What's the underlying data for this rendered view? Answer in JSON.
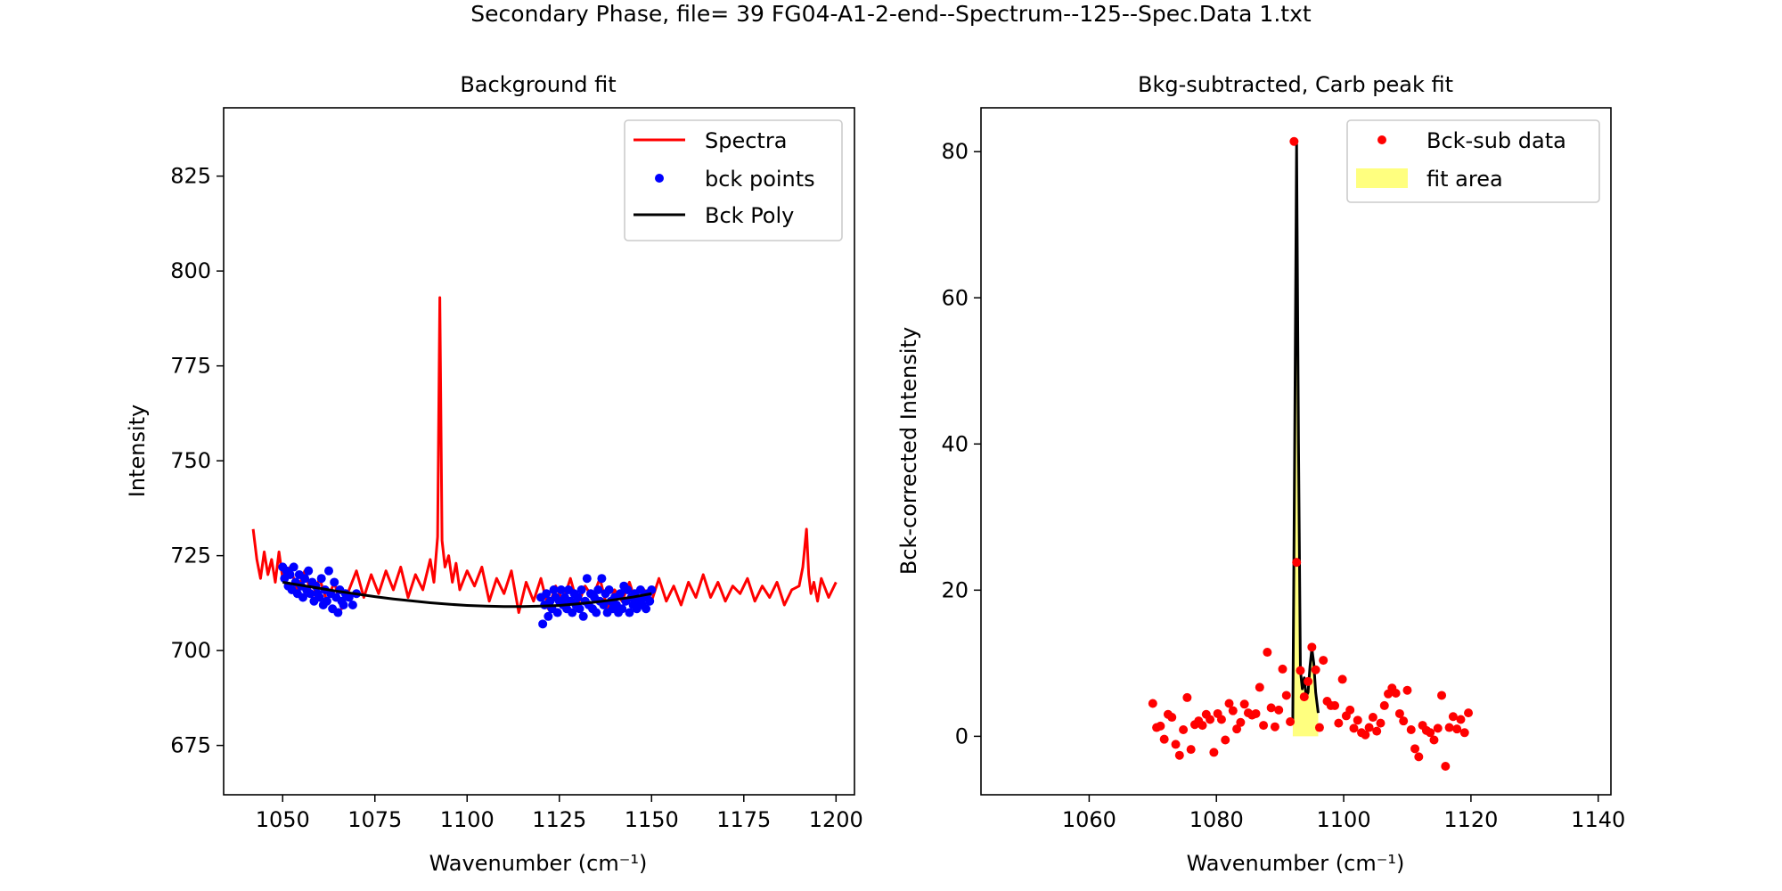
{
  "figure": {
    "title": "Secondary Phase, file= 39 FG04-A1-2-end--Spectrum--125--Spec.Data 1.txt"
  },
  "colors": {
    "spectra": "#ff0000",
    "bck_points": "#0000ff",
    "bck_poly": "#000000",
    "bck_sub_data": "#ff0000",
    "fit_area": "#ffff00",
    "fit_line": "#000000"
  },
  "chart_data": [
    {
      "type": "line",
      "title": "Background fit",
      "xlabel": "Wavenumber (cm⁻¹)",
      "ylabel": "Intensity",
      "xlim": [
        1034,
        1205
      ],
      "ylim": [
        662,
        843
      ],
      "xticks": [
        1050,
        1075,
        1100,
        1125,
        1150,
        1175,
        1200
      ],
      "yticks": [
        675,
        700,
        725,
        750,
        775,
        800,
        825
      ],
      "grid": false,
      "legend_position": "top-right",
      "legend": [
        "Spectra",
        "bck points",
        "Bck Poly"
      ],
      "series": [
        {
          "name": "Spectra",
          "kind": "line",
          "x": [
            1042,
            1043,
            1044,
            1045,
            1046,
            1047,
            1048,
            1049,
            1050,
            1052,
            1054,
            1056,
            1058,
            1060,
            1062,
            1064,
            1066,
            1068,
            1070,
            1072,
            1074,
            1076,
            1078,
            1080,
            1082,
            1084,
            1086,
            1088,
            1090,
            1091,
            1092,
            1092.6,
            1093.2,
            1094,
            1095,
            1096,
            1097,
            1098,
            1100,
            1102,
            1104,
            1106,
            1108,
            1110,
            1112,
            1114,
            1116,
            1118,
            1120,
            1122,
            1124,
            1126,
            1128,
            1130,
            1132,
            1134,
            1136,
            1138,
            1140,
            1142,
            1144,
            1146,
            1148,
            1150,
            1152,
            1154,
            1156,
            1158,
            1160,
            1162,
            1164,
            1166,
            1168,
            1170,
            1172,
            1174,
            1176,
            1178,
            1180,
            1182,
            1184,
            1186,
            1188,
            1190,
            1191,
            1192,
            1192.6,
            1193.2,
            1194,
            1195,
            1196,
            1198,
            1200
          ],
          "y": [
            732,
            724,
            719,
            726,
            720,
            724,
            718,
            726,
            719,
            722,
            716,
            721,
            714,
            719,
            713,
            718,
            711,
            716,
            721,
            714,
            720,
            715,
            721,
            716,
            722,
            714,
            720,
            716,
            724,
            718,
            730,
            793,
            729,
            722,
            725,
            718,
            723,
            716,
            721,
            717,
            722,
            713,
            719,
            715,
            721,
            710,
            718,
            713,
            719,
            711,
            717,
            713,
            719,
            712,
            717,
            714,
            719,
            711,
            716,
            713,
            718,
            712,
            716,
            713,
            719,
            713,
            717,
            712,
            718,
            714,
            720,
            714,
            718,
            713,
            717,
            715,
            719,
            713,
            717,
            714,
            718,
            712,
            716,
            717,
            722,
            732,
            720,
            715,
            718,
            713,
            719,
            714,
            718
          ]
        },
        {
          "name": "bck points",
          "kind": "scatter",
          "x": [
            1050,
            1050.5,
            1051,
            1051.5,
            1052,
            1052.5,
            1053,
            1053.5,
            1054,
            1054.5,
            1055,
            1055.5,
            1056,
            1056.5,
            1057,
            1057.5,
            1058,
            1058.5,
            1059,
            1059.5,
            1060,
            1060.5,
            1061,
            1061.5,
            1062,
            1062.5,
            1063,
            1063.5,
            1064,
            1064.5,
            1065,
            1065.5,
            1066,
            1066.5,
            1067,
            1068,
            1069,
            1070,
            1120,
            1120.5,
            1121,
            1121.5,
            1122,
            1122.5,
            1123,
            1123.5,
            1124,
            1124.5,
            1125,
            1125.5,
            1126,
            1126.5,
            1127,
            1127.5,
            1128,
            1128.5,
            1129,
            1129.5,
            1130,
            1130.5,
            1131,
            1131.5,
            1132,
            1132.5,
            1133,
            1133.5,
            1134,
            1134.5,
            1135,
            1135.5,
            1136,
            1136.5,
            1137,
            1137.5,
            1138,
            1138.5,
            1139,
            1139.5,
            1140,
            1140.5,
            1141,
            1141.5,
            1142,
            1142.5,
            1143,
            1143.5,
            1144,
            1144.5,
            1145,
            1145.5,
            1146,
            1146.5,
            1147,
            1147.5,
            1148,
            1148.5,
            1149,
            1149.5,
            1150
          ],
          "y": [
            722,
            719,
            721,
            717,
            720,
            716,
            722,
            718,
            715,
            720,
            717,
            714,
            719,
            716,
            721,
            715,
            718,
            713,
            717,
            715,
            714,
            719,
            712,
            716,
            713,
            721,
            715,
            711,
            718,
            714,
            710,
            716,
            713,
            712,
            715,
            714,
            712,
            715,
            714,
            707,
            712,
            715,
            709,
            713,
            711,
            716,
            714,
            710,
            713,
            716,
            712,
            714,
            711,
            716,
            713,
            710,
            715,
            712,
            714,
            711,
            716,
            709,
            713,
            719,
            712,
            715,
            711,
            714,
            710,
            716,
            713,
            719,
            712,
            715,
            710,
            716,
            713,
            711,
            714,
            712,
            710,
            715,
            711,
            717,
            713,
            716,
            710,
            714,
            712,
            715,
            711,
            713,
            716,
            712,
            714,
            711,
            715,
            713,
            716
          ]
        },
        {
          "name": "Bck Poly",
          "kind": "line",
          "x": [
            1050,
            1055,
            1060,
            1065,
            1070,
            1075,
            1080,
            1085,
            1090,
            1095,
            1100,
            1105,
            1110,
            1115,
            1120,
            1125,
            1130,
            1135,
            1140,
            1145,
            1150
          ],
          "y": [
            718,
            717.2,
            716.4,
            715.6,
            714.9,
            714.2,
            713.6,
            713.1,
            712.6,
            712.2,
            711.9,
            711.7,
            711.6,
            711.6,
            711.7,
            711.9,
            712.3,
            712.8,
            713.4,
            714.1,
            715
          ]
        }
      ]
    },
    {
      "type": "scatter",
      "title": "Bkg-subtracted, Carb peak fit",
      "xlabel": "Wavenumber (cm⁻¹)",
      "ylabel": "Bck-corrected Intensity",
      "xlim": [
        1043,
        1142
      ],
      "ylim": [
        -8,
        86
      ],
      "xticks": [
        1060,
        1080,
        1100,
        1120,
        1140
      ],
      "yticks": [
        0,
        20,
        40,
        60,
        80
      ],
      "grid": false,
      "legend_position": "top-right",
      "legend": [
        "Bck-sub data",
        "fit area"
      ],
      "fit_area": {
        "x_start": 1092,
        "x_end": 1096
      },
      "series": [
        {
          "name": "Bck-sub data",
          "kind": "scatter",
          "x": [
            1070,
            1070.6,
            1071.2,
            1071.8,
            1072.4,
            1073,
            1073.6,
            1074.2,
            1074.8,
            1075.4,
            1076,
            1076.6,
            1077.2,
            1077.8,
            1078.4,
            1079,
            1079.6,
            1080.2,
            1080.8,
            1081.4,
            1082,
            1082.6,
            1083.2,
            1083.8,
            1084.4,
            1085,
            1085.6,
            1086.2,
            1086.8,
            1087.4,
            1088,
            1088.6,
            1089.2,
            1089.8,
            1090.4,
            1091,
            1091.6,
            1092.2,
            1092.6,
            1093.2,
            1093.8,
            1094.4,
            1095,
            1095.6,
            1096.2,
            1096.8,
            1097.4,
            1098,
            1098.6,
            1099.2,
            1099.8,
            1100.4,
            1101,
            1101.6,
            1102.2,
            1102.8,
            1103.4,
            1104,
            1104.6,
            1105.2,
            1105.8,
            1106.4,
            1107,
            1107.6,
            1108.2,
            1108.8,
            1109.4,
            1110,
            1110.6,
            1111.2,
            1111.8,
            1112.4,
            1113,
            1113.6,
            1114.2,
            1114.8,
            1115.4,
            1116,
            1116.6,
            1117.2,
            1117.8,
            1118.4,
            1119,
            1119.6
          ],
          "y": [
            4.5,
            1.2,
            1.4,
            -0.4,
            3.0,
            2.6,
            -1.1,
            -2.6,
            0.9,
            5.3,
            -1.8,
            1.6,
            2.1,
            1.5,
            3.0,
            2.3,
            -2.2,
            3.1,
            2.3,
            -0.5,
            4.5,
            3.5,
            1.0,
            1.9,
            4.4,
            3.2,
            2.9,
            3.1,
            6.7,
            1.5,
            11.5,
            3.9,
            1.3,
            3.6,
            9.2,
            5.6,
            2.0,
            81.4,
            23.8,
            9.0,
            5.4,
            7.5,
            12.2,
            9.1,
            1.2,
            10.4,
            4.8,
            4.2,
            4.2,
            1.8,
            7.8,
            2.8,
            3.6,
            1.1,
            2.2,
            0.5,
            0.2,
            1.2,
            2.6,
            0.7,
            1.8,
            4.2,
            5.8,
            6.6,
            5.9,
            3.1,
            2.1,
            6.3,
            0.9,
            -1.7,
            -2.8,
            1.5,
            0.8,
            0.5,
            -0.5,
            1.1,
            5.6,
            -4.1,
            1.2,
            2.7,
            1.0,
            2.3,
            0.5,
            3.2
          ]
        },
        {
          "name": "fit",
          "kind": "line",
          "x": [
            1092,
            1092.3,
            1092.6,
            1092.9,
            1093.2,
            1093.5,
            1093.8,
            1094.1,
            1094.4,
            1094.7,
            1095,
            1095.3,
            1095.6,
            1096
          ],
          "y": [
            2.2,
            40,
            81,
            40,
            9,
            6.5,
            8,
            5.5,
            6,
            9.5,
            12,
            10,
            6,
            3.2
          ]
        }
      ]
    }
  ]
}
